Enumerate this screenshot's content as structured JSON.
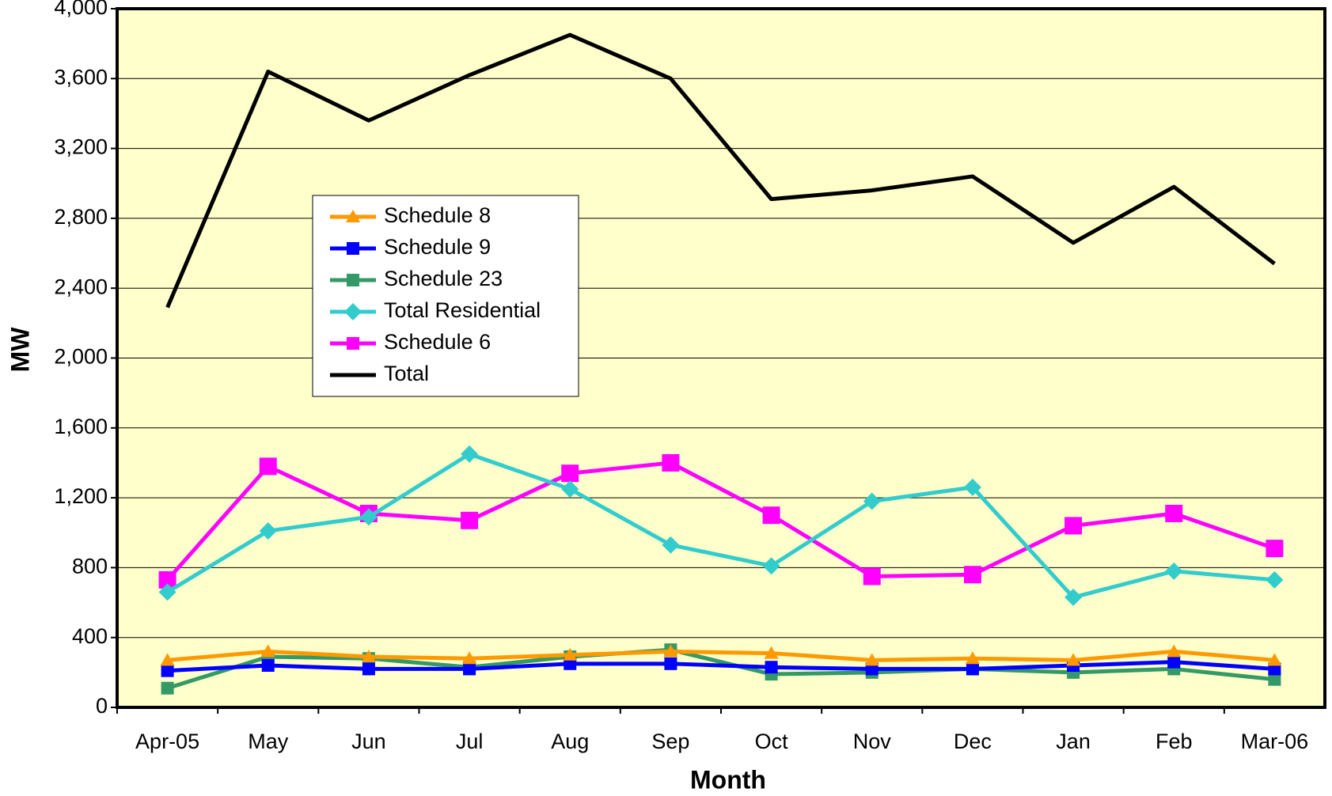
{
  "chart_data": {
    "type": "line",
    "x_label": "Month",
    "y_label": "MW",
    "categories": [
      "Apr-05",
      "May",
      "Jun",
      "Jul",
      "Aug",
      "Sep",
      "Oct",
      "Nov",
      "Dec",
      "Jan",
      "Feb",
      "Mar-06"
    ],
    "ylim": [
      0,
      4000
    ],
    "yticks": [
      0,
      400,
      800,
      {
        "value": 1200,
        "label": "1,200"
      },
      {
        "value": 1600,
        "label": "1,600"
      },
      {
        "value": 2000,
        "label": "2,000"
      },
      {
        "value": 2400,
        "label": "2,400"
      },
      {
        "value": 2800,
        "label": "2,800"
      },
      {
        "value": 3200,
        "label": "3,200"
      },
      {
        "value": 3600,
        "label": "3,600"
      },
      {
        "value": 4000,
        "label": "4,000"
      }
    ],
    "grid": true,
    "background": "#FFFFCC",
    "series": [
      {
        "name": "Schedule 8",
        "color": "#FF9900",
        "marker": "triangle",
        "values": [
          270,
          320,
          290,
          280,
          300,
          320,
          310,
          270,
          280,
          270,
          320,
          270
        ]
      },
      {
        "name": "Schedule 9",
        "color": "#0000FF",
        "marker": "square",
        "values": [
          210,
          240,
          220,
          220,
          250,
          250,
          230,
          220,
          220,
          240,
          260,
          220
        ]
      },
      {
        "name": "Schedule 23",
        "color": "#339966",
        "marker": "square",
        "values": [
          110,
          290,
          280,
          230,
          290,
          330,
          190,
          200,
          220,
          200,
          220,
          160
        ]
      },
      {
        "name": "Total Residential",
        "color": "#33CCCC",
        "marker": "diamond",
        "values": [
          660,
          1010,
          1090,
          1450,
          1250,
          930,
          810,
          1180,
          1260,
          630,
          780,
          730
        ]
      },
      {
        "name": "Schedule 6",
        "color": "#FF00FF",
        "marker": "bigsquare",
        "values": [
          730,
          1380,
          1110,
          1070,
          1340,
          1400,
          1100,
          750,
          760,
          1040,
          1110,
          910
        ]
      },
      {
        "name": "Total",
        "color": "#000000",
        "marker": "none",
        "values": [
          2290,
          3640,
          3360,
          3620,
          3850,
          3600,
          2910,
          2960,
          3040,
          2660,
          2980,
          2540
        ]
      }
    ]
  }
}
